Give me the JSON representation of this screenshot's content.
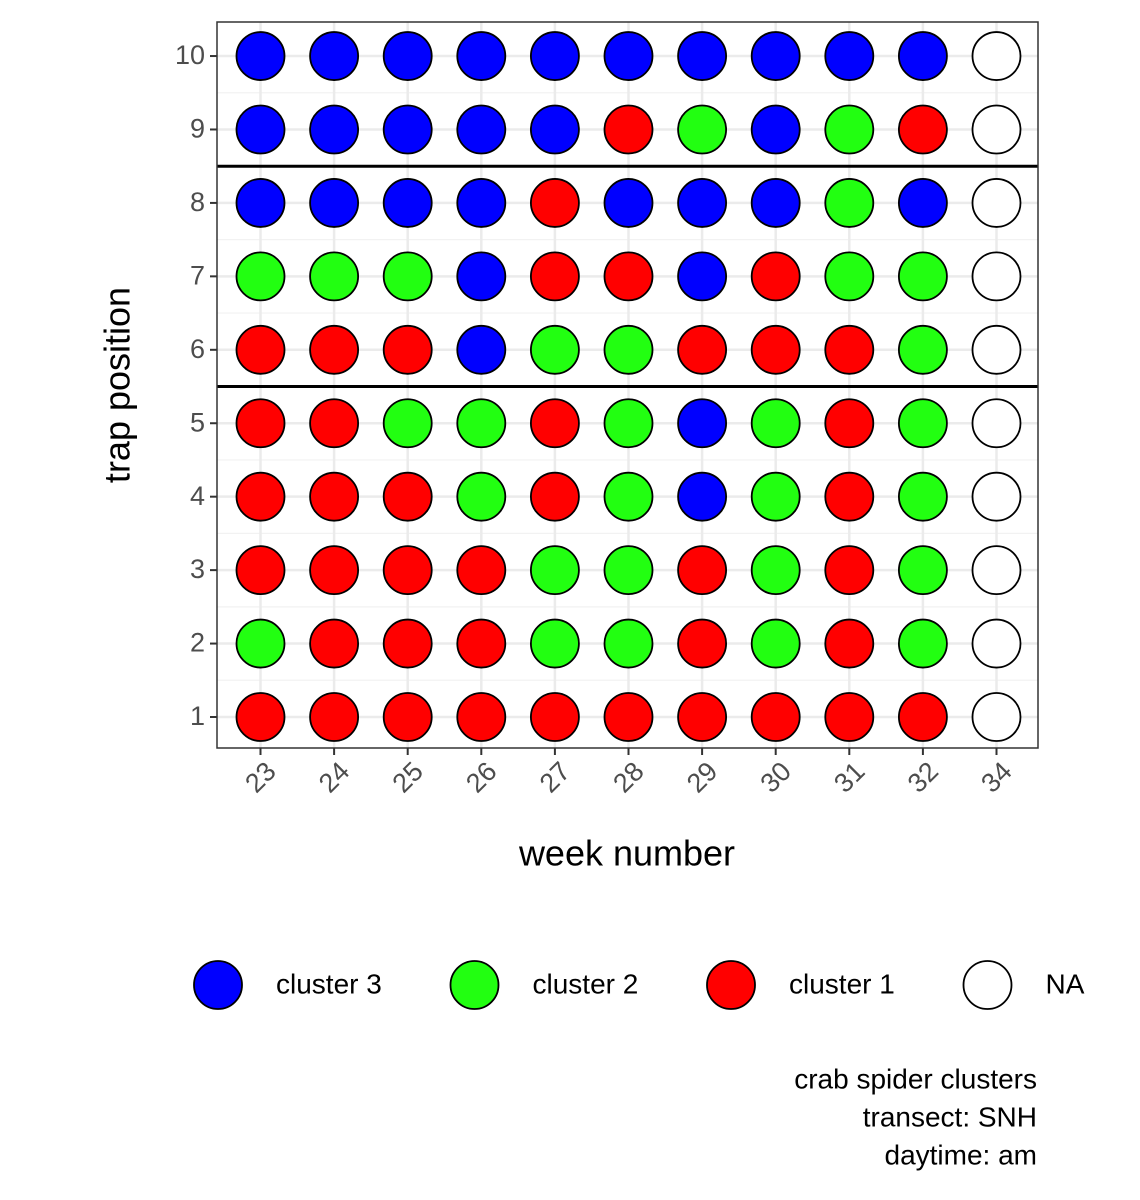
{
  "chart_data": {
    "type": "dot-matrix",
    "x_label": "week number",
    "y_label": "trap position",
    "x_categories": [
      "23",
      "24",
      "25",
      "26",
      "27",
      "28",
      "29",
      "30",
      "31",
      "32",
      "34"
    ],
    "y_categories": [
      "1",
      "2",
      "3",
      "4",
      "5",
      "6",
      "7",
      "8",
      "9",
      "10"
    ],
    "values": [
      [
        1,
        1,
        1,
        1,
        1,
        1,
        1,
        1,
        1,
        1,
        null
      ],
      [
        2,
        1,
        1,
        1,
        2,
        2,
        1,
        2,
        1,
        2,
        null
      ],
      [
        1,
        1,
        1,
        1,
        2,
        2,
        1,
        2,
        1,
        2,
        null
      ],
      [
        1,
        1,
        1,
        2,
        1,
        2,
        3,
        2,
        1,
        2,
        null
      ],
      [
        1,
        1,
        2,
        2,
        1,
        2,
        3,
        2,
        1,
        2,
        null
      ],
      [
        1,
        1,
        1,
        3,
        2,
        2,
        1,
        1,
        1,
        2,
        null
      ],
      [
        2,
        2,
        2,
        3,
        1,
        1,
        3,
        1,
        2,
        2,
        null
      ],
      [
        3,
        3,
        3,
        3,
        1,
        3,
        3,
        3,
        2,
        3,
        null
      ],
      [
        3,
        3,
        3,
        3,
        3,
        1,
        2,
        3,
        2,
        1,
        null
      ],
      [
        3,
        3,
        3,
        3,
        3,
        3,
        3,
        3,
        3,
        3,
        null
      ]
    ],
    "legend": [
      {
        "name": "cluster 3",
        "color": "#0000ff",
        "value": 3
      },
      {
        "name": "cluster 2",
        "color": "#22ff11",
        "value": 2
      },
      {
        "name": "cluster 1",
        "color": "#ff0000",
        "value": 1
      },
      {
        "name": "NA",
        "color": "#ffffff",
        "value": null
      }
    ],
    "legend_position": "bottom",
    "hlines": [
      5.5,
      8.5
    ],
    "grid": true,
    "caption": [
      "crab spider clusters",
      "transect: SNH",
      "daytime: am"
    ]
  }
}
